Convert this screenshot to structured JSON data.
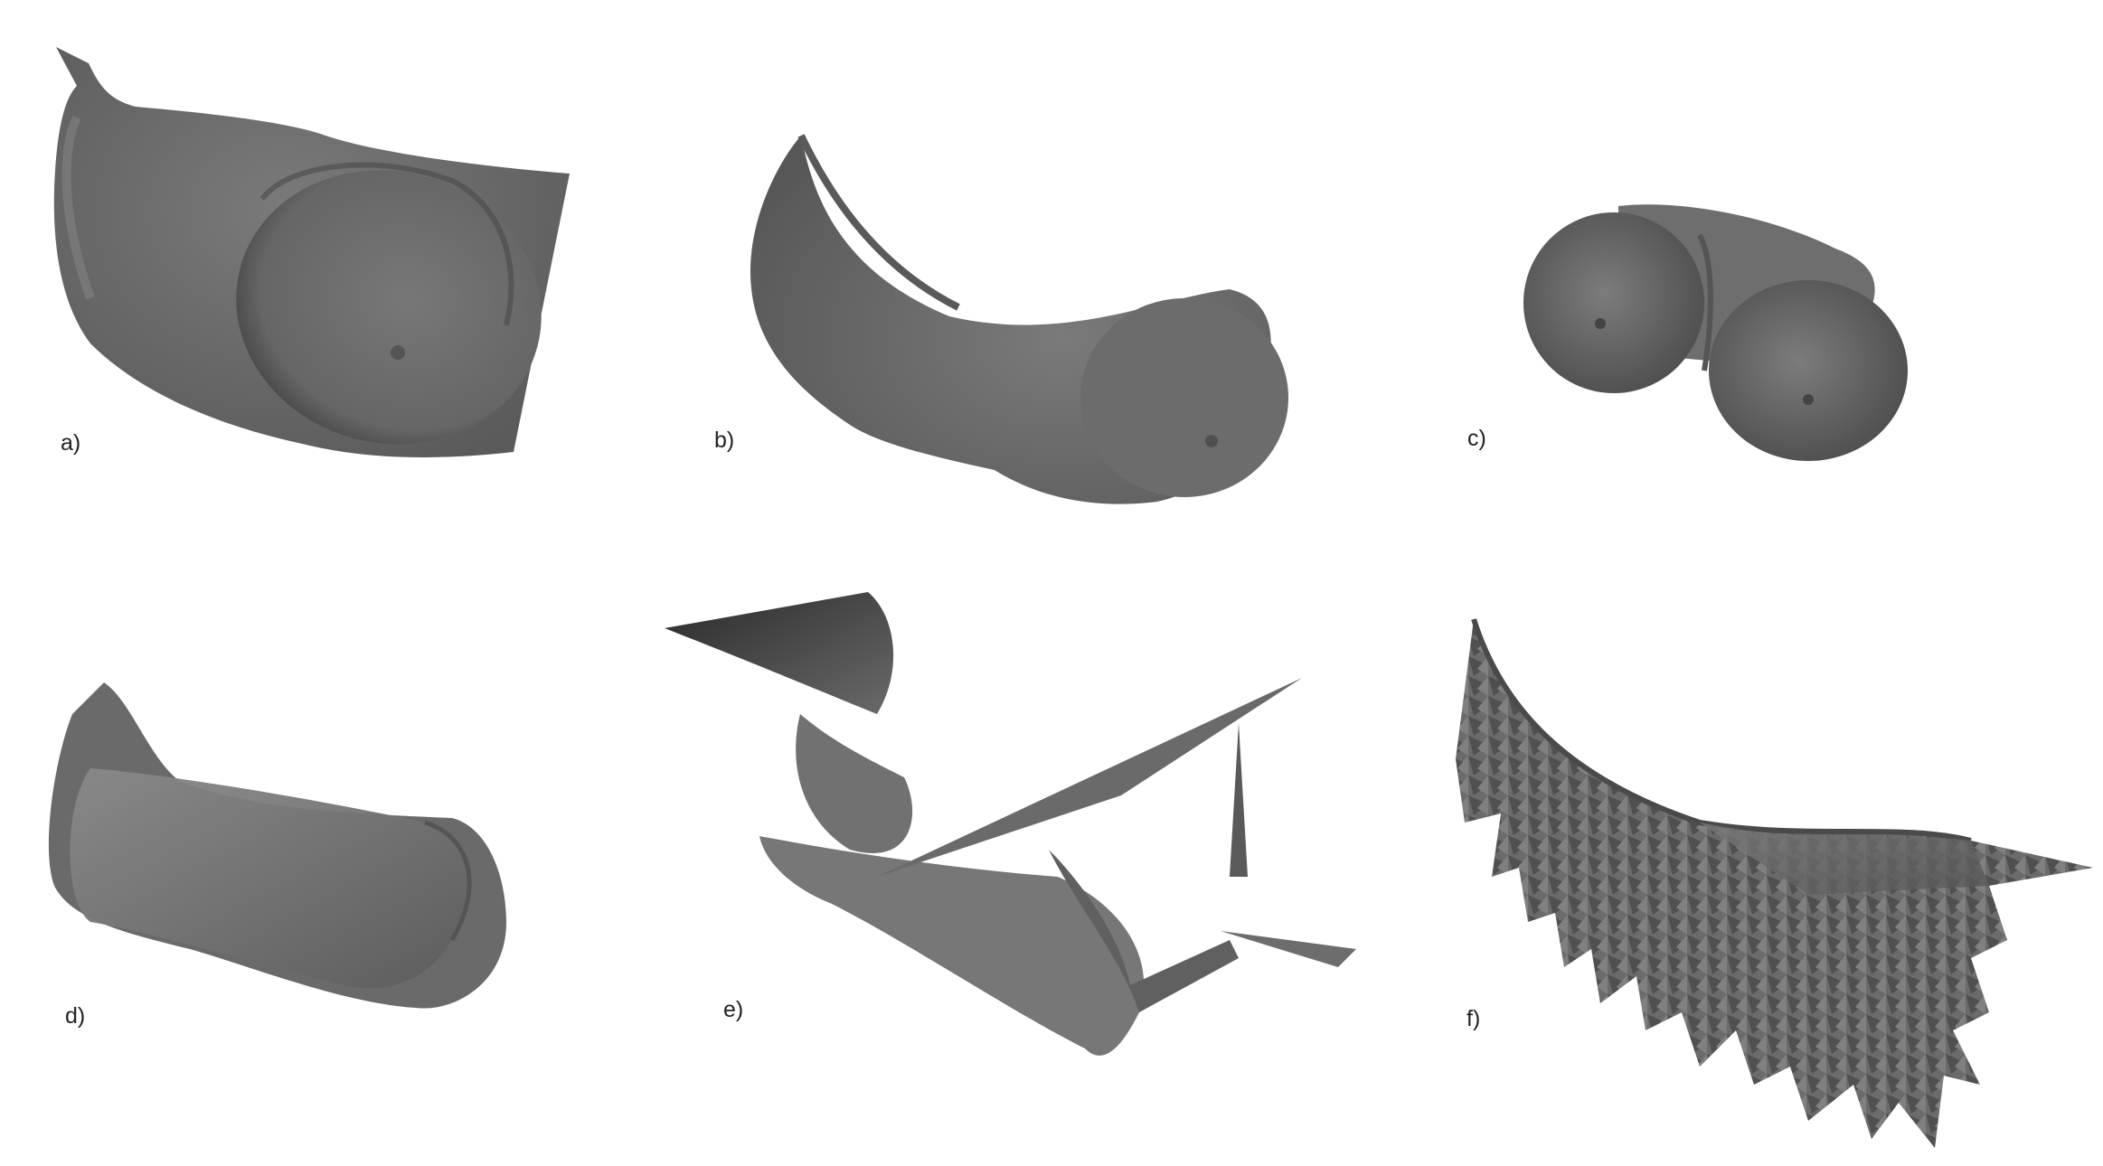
{
  "panels": [
    {
      "label": "a)",
      "icon": "smooth-torso-scan-mesh"
    },
    {
      "label": "b)",
      "icon": "smooth-breast-surface-mesh"
    },
    {
      "label": "c)",
      "icon": "two-lobe-breast-mesh"
    },
    {
      "label": "d)",
      "icon": "overlapping-surface-mesh"
    },
    {
      "label": "e)",
      "icon": "distorted-spiky-mesh"
    },
    {
      "label": "f)",
      "icon": "noisy-jagged-mesh"
    }
  ],
  "colors": {
    "background": "#ffffff",
    "mesh_gray": "#6e6e6e",
    "mesh_light": "#8c8c8c",
    "mesh_dark": "#3a3a3a",
    "label_text": "#222222"
  }
}
